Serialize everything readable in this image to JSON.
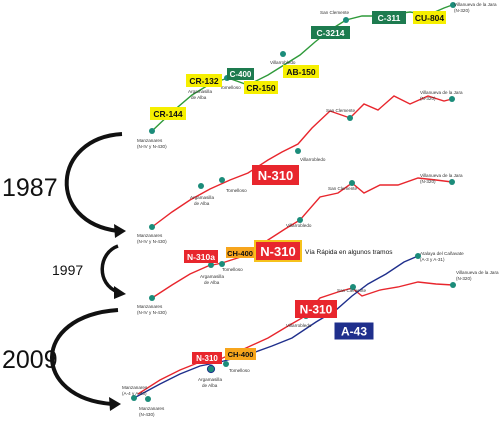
{
  "years": {
    "y1987": "1987",
    "y1997": "1997",
    "y2009": "2009"
  },
  "note_via_rapida": "Vía Rápida en algunos tramos",
  "colors": {
    "n310": "#e8262d",
    "a43": "#1f2f8c",
    "yellow": "#f6ef00",
    "orange": "#f7a51c",
    "green": "#1d7b4f",
    "node": "#1b8c7a",
    "road_green": "#2f9a3a"
  },
  "map1": {
    "towns": {
      "manzanares_1": "Manzanares",
      "manzanares_2": "(N-IV y N-430)",
      "argamasilla_1": "Argamasilla",
      "argamasilla_2": "de Alba",
      "tomelloso": "Tomelloso",
      "villarrobledo": "Villarrobledo",
      "san_clemente": "San Clemente",
      "villanueva_1": "Villanueva de la Jara",
      "villanueva_2": "(N-320)"
    },
    "badges": {
      "cr144": "CR-144",
      "cr132": "CR-132",
      "c400": "C-400",
      "cr150": "CR-150",
      "ab150": "AB-150",
      "c3214": "C-3214",
      "c311": "C-311",
      "cu804": "CU-804"
    }
  },
  "map2": {
    "towns": {
      "manzanares_1": "Manzanares",
      "manzanares_2": "(N-IV y N-430)",
      "argamasilla_1": "Argamasilla",
      "argamasilla_2": "de Alba",
      "tomelloso": "Tomelloso",
      "villarrobledo": "Villarrobledo",
      "san_clemente": "San Clemente",
      "villanueva_1": "Villanueva de la Jara",
      "villanueva_2": "(N-320)"
    },
    "badges": {
      "n310": "N-310"
    }
  },
  "map3": {
    "towns": {
      "manzanares_1": "Manzanares",
      "manzanares_2": "(N-IV y N-430)",
      "argamasilla_1": "Argamasilla",
      "argamasilla_2": "de Alba",
      "tomelloso": "Tomelloso",
      "villarrobledo": "Villarrobledo",
      "san_clemente": "San Clemente",
      "villanueva_1": "Villanueva de la Jara",
      "villanueva_2": "(N-320)"
    },
    "badges": {
      "n310a": "N-310a",
      "ch400": "CH-400",
      "n310": "N-310"
    }
  },
  "map4": {
    "towns": {
      "manzanares_1": "Manzanares",
      "manzanares_2": "(A-4 y A-43)",
      "manzanares_b1": "Manzanares",
      "manzanares_b2": "(N-430)",
      "argamasilla_1": "Argamasilla",
      "argamasilla_2": "de Alba",
      "tomelloso": "Tomelloso",
      "villarrobledo": "Villarrobledo",
      "san_clemente": "San Clemente",
      "atalaya_1": "Atalaya del Cañavate",
      "atalaya_2": "(A-3 y A-31)",
      "villanueva_1": "Villanueva de la Jara",
      "villanueva_2": "(N-320)"
    },
    "badges": {
      "n310_top": "N-310",
      "a43": "A-43",
      "n310_low": "N-310",
      "ch400": "CH-400"
    }
  }
}
